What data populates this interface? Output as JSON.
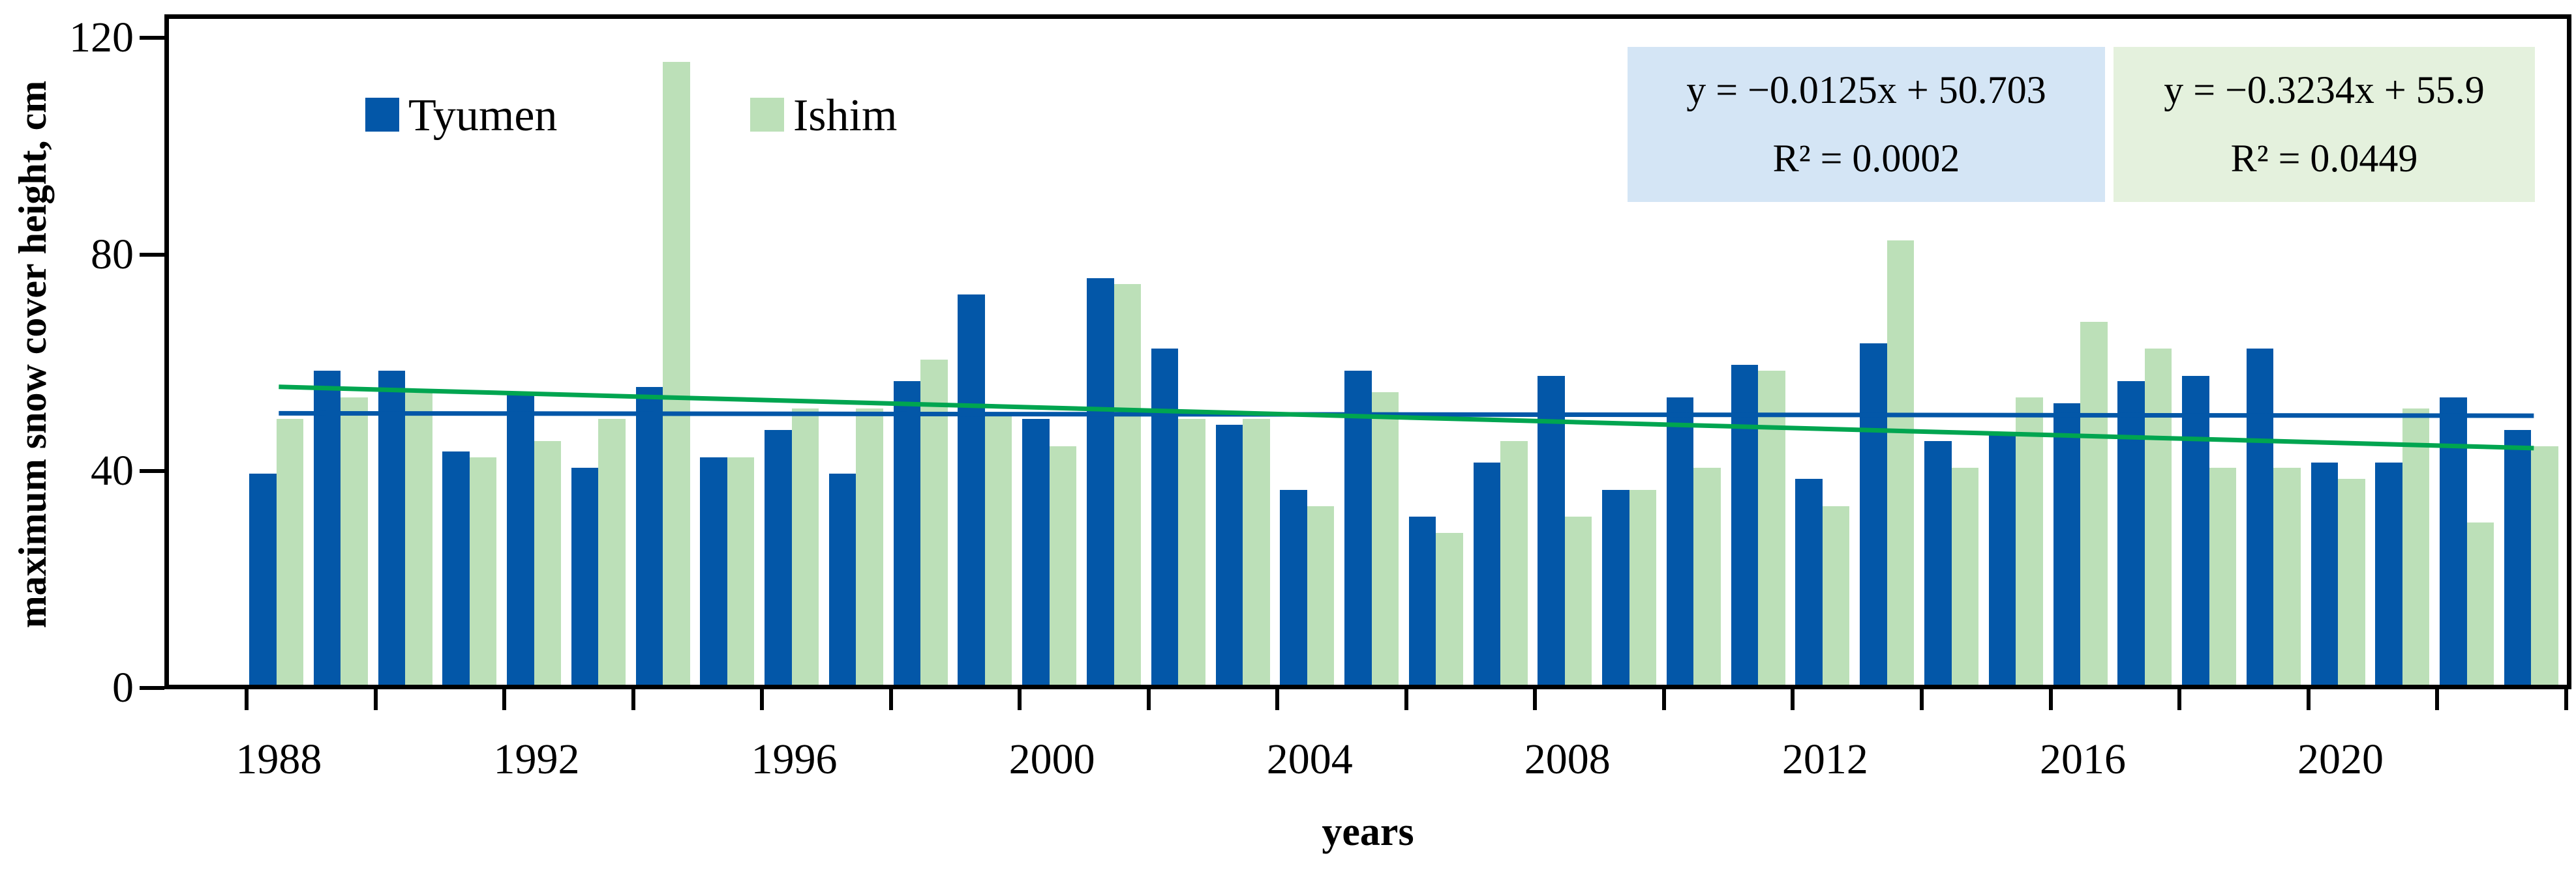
{
  "chart_data": {
    "type": "bar",
    "title": "",
    "xlabel": "years",
    "ylabel": "maximum snow cover height, cm",
    "ylim": [
      0,
      120
    ],
    "yticks": [
      0,
      40,
      80,
      120
    ],
    "xtick_label_years": [
      1988,
      1992,
      1996,
      2000,
      2004,
      2008,
      2012,
      2016,
      2020
    ],
    "xtick_mark_interval_years": 2,
    "grid": "off",
    "legend_position": "top-left-inside",
    "categories": [
      1988,
      1989,
      1990,
      1991,
      1992,
      1993,
      1994,
      1995,
      1996,
      1997,
      1998,
      1999,
      2000,
      2001,
      2002,
      2003,
      2004,
      2005,
      2006,
      2007,
      2008,
      2009,
      2010,
      2011,
      2012,
      2013,
      2014,
      2015,
      2016,
      2017,
      2018,
      2019,
      2020,
      2021,
      2022,
      2023
    ],
    "series": [
      {
        "name": "Tyumen",
        "color": "#0357A8",
        "values": [
          39,
          58,
          58,
          43,
          54,
          40,
          55,
          42,
          47,
          39,
          56,
          72,
          49,
          75,
          62,
          48,
          36,
          58,
          31,
          41,
          57,
          36,
          53,
          59,
          38,
          63,
          45,
          46,
          52,
          56,
          57,
          62,
          41,
          41,
          53,
          47
        ]
      },
      {
        "name": "Ishim",
        "color": "#BCE0B8",
        "values": [
          49,
          53,
          54,
          42,
          45,
          49,
          115,
          42,
          51,
          51,
          60,
          50,
          44,
          74,
          49,
          49,
          33,
          54,
          28,
          45,
          31,
          36,
          40,
          58,
          33,
          82,
          40,
          53,
          67,
          62,
          40,
          40,
          38,
          51,
          30,
          44
        ]
      }
    ],
    "trendlines": [
      {
        "series": "Tyumen",
        "equation": "y = −0.0125x + 50.703",
        "r2": "R² = 0.0002",
        "slope": -0.0125,
        "intercept": 50.703,
        "line_color": "#0357A8",
        "box_fill": "#D4E5F5"
      },
      {
        "series": "Ishim",
        "equation": "y = −0.3234x + 55.9",
        "r2": "R² = 0.0449",
        "slope": -0.3234,
        "intercept": 55.9,
        "line_color": "#00A550",
        "box_fill": "#E4F1DD"
      }
    ]
  }
}
